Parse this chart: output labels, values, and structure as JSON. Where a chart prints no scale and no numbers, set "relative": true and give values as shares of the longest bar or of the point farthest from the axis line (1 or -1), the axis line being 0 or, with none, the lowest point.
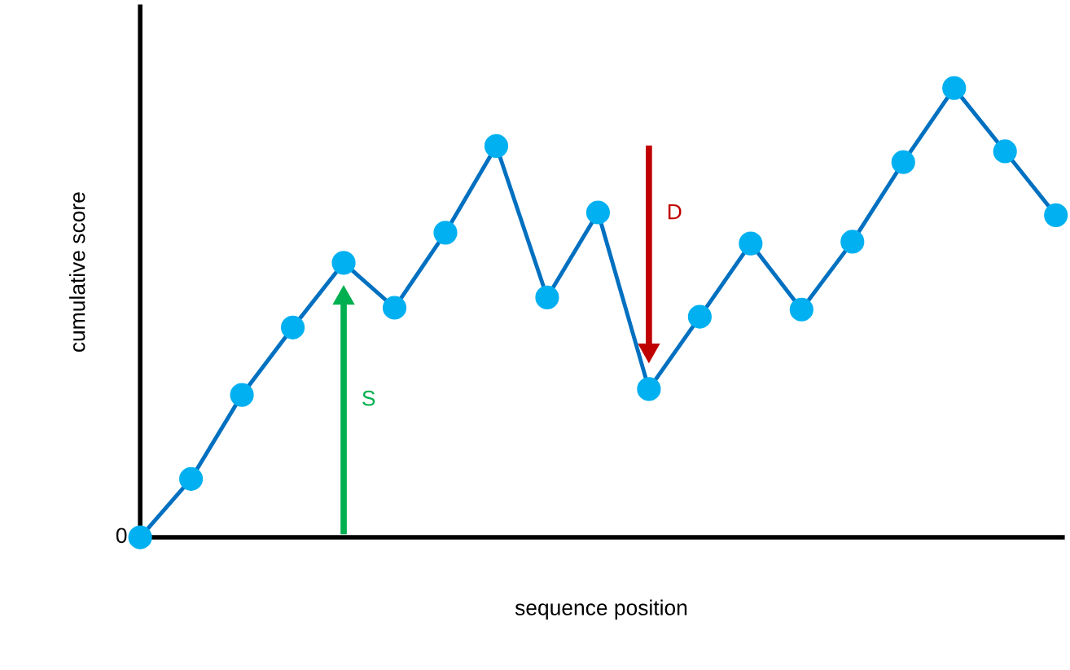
{
  "chart_data": {
    "type": "line",
    "xlabel": "sequence position",
    "ylabel": "cumulative score",
    "relative": true,
    "categories": [
      null,
      null,
      null,
      null,
      null,
      null,
      null,
      null,
      null,
      null,
      null,
      null,
      null,
      null,
      null,
      null,
      null,
      null,
      null
    ],
    "series": [
      {
        "color": "#0070c0",
        "values": [
          0,
          0.13,
          0.317,
          0.467,
          0.611,
          0.511,
          0.678,
          0.871,
          0.534,
          0.723,
          0.33,
          0.491,
          0.654,
          0.507,
          0.658,
          0.835,
          1,
          0.859,
          0.717
        ]
      }
    ],
    "marker": "circle",
    "line_style": "solid",
    "legend": false,
    "annotations": [
      "0",
      "S",
      "D"
    ]
  }
}
